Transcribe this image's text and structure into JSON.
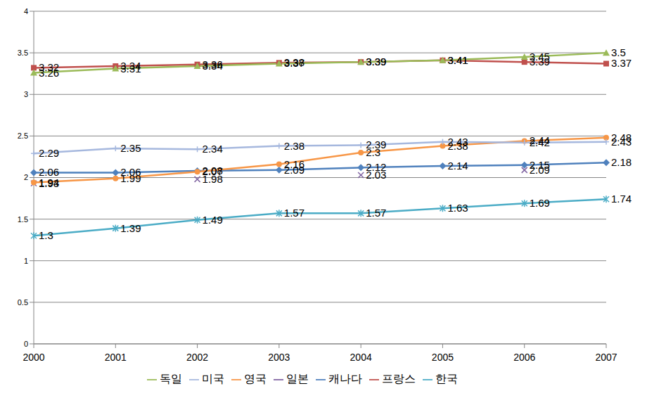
{
  "chart_data": {
    "type": "line",
    "categories": [
      "2000",
      "2001",
      "2002",
      "2003",
      "2004",
      "2005",
      "2006",
      "2007"
    ],
    "series": [
      {
        "name": "캐나다",
        "color": "#4f81bd",
        "marker": "diamond",
        "values": [
          2.06,
          2.06,
          2.08,
          2.09,
          2.12,
          2.14,
          2.15,
          2.18
        ]
      },
      {
        "name": "프랑스",
        "color": "#c0504d",
        "marker": "square",
        "values": [
          3.32,
          3.34,
          3.36,
          3.38,
          3.39,
          3.41,
          3.39,
          3.37
        ]
      },
      {
        "name": "독일",
        "color": "#9bbb59",
        "marker": "triangle",
        "values": [
          3.26,
          3.31,
          3.34,
          3.37,
          3.39,
          3.41,
          3.45,
          3.5
        ]
      },
      {
        "name": "일본",
        "color": "#8064a2",
        "marker": "x",
        "values": [
          1.93,
          null,
          1.98,
          null,
          2.03,
          null,
          2.09,
          null
        ]
      },
      {
        "name": "한국",
        "color": "#4bacc6",
        "marker": "asterisk",
        "values": [
          1.3,
          1.39,
          1.49,
          1.57,
          1.57,
          1.63,
          1.69,
          1.74
        ]
      },
      {
        "name": "영국",
        "color": "#f79646",
        "marker": "circle",
        "values": [
          1.94,
          1.99,
          2.07,
          2.16,
          2.3,
          2.38,
          2.44,
          2.48
        ]
      },
      {
        "name": "미국",
        "color": "#a6b8de",
        "marker": "plus",
        "values": [
          2.29,
          2.35,
          2.34,
          2.38,
          2.39,
          2.43,
          2.42,
          2.43
        ]
      }
    ],
    "ylim": [
      0,
      4
    ],
    "yticks": [
      0,
      0.5,
      1,
      1.5,
      2,
      2.5,
      3,
      3.5,
      4
    ],
    "grid": true,
    "legend": "bottom",
    "data_labels": true
  }
}
